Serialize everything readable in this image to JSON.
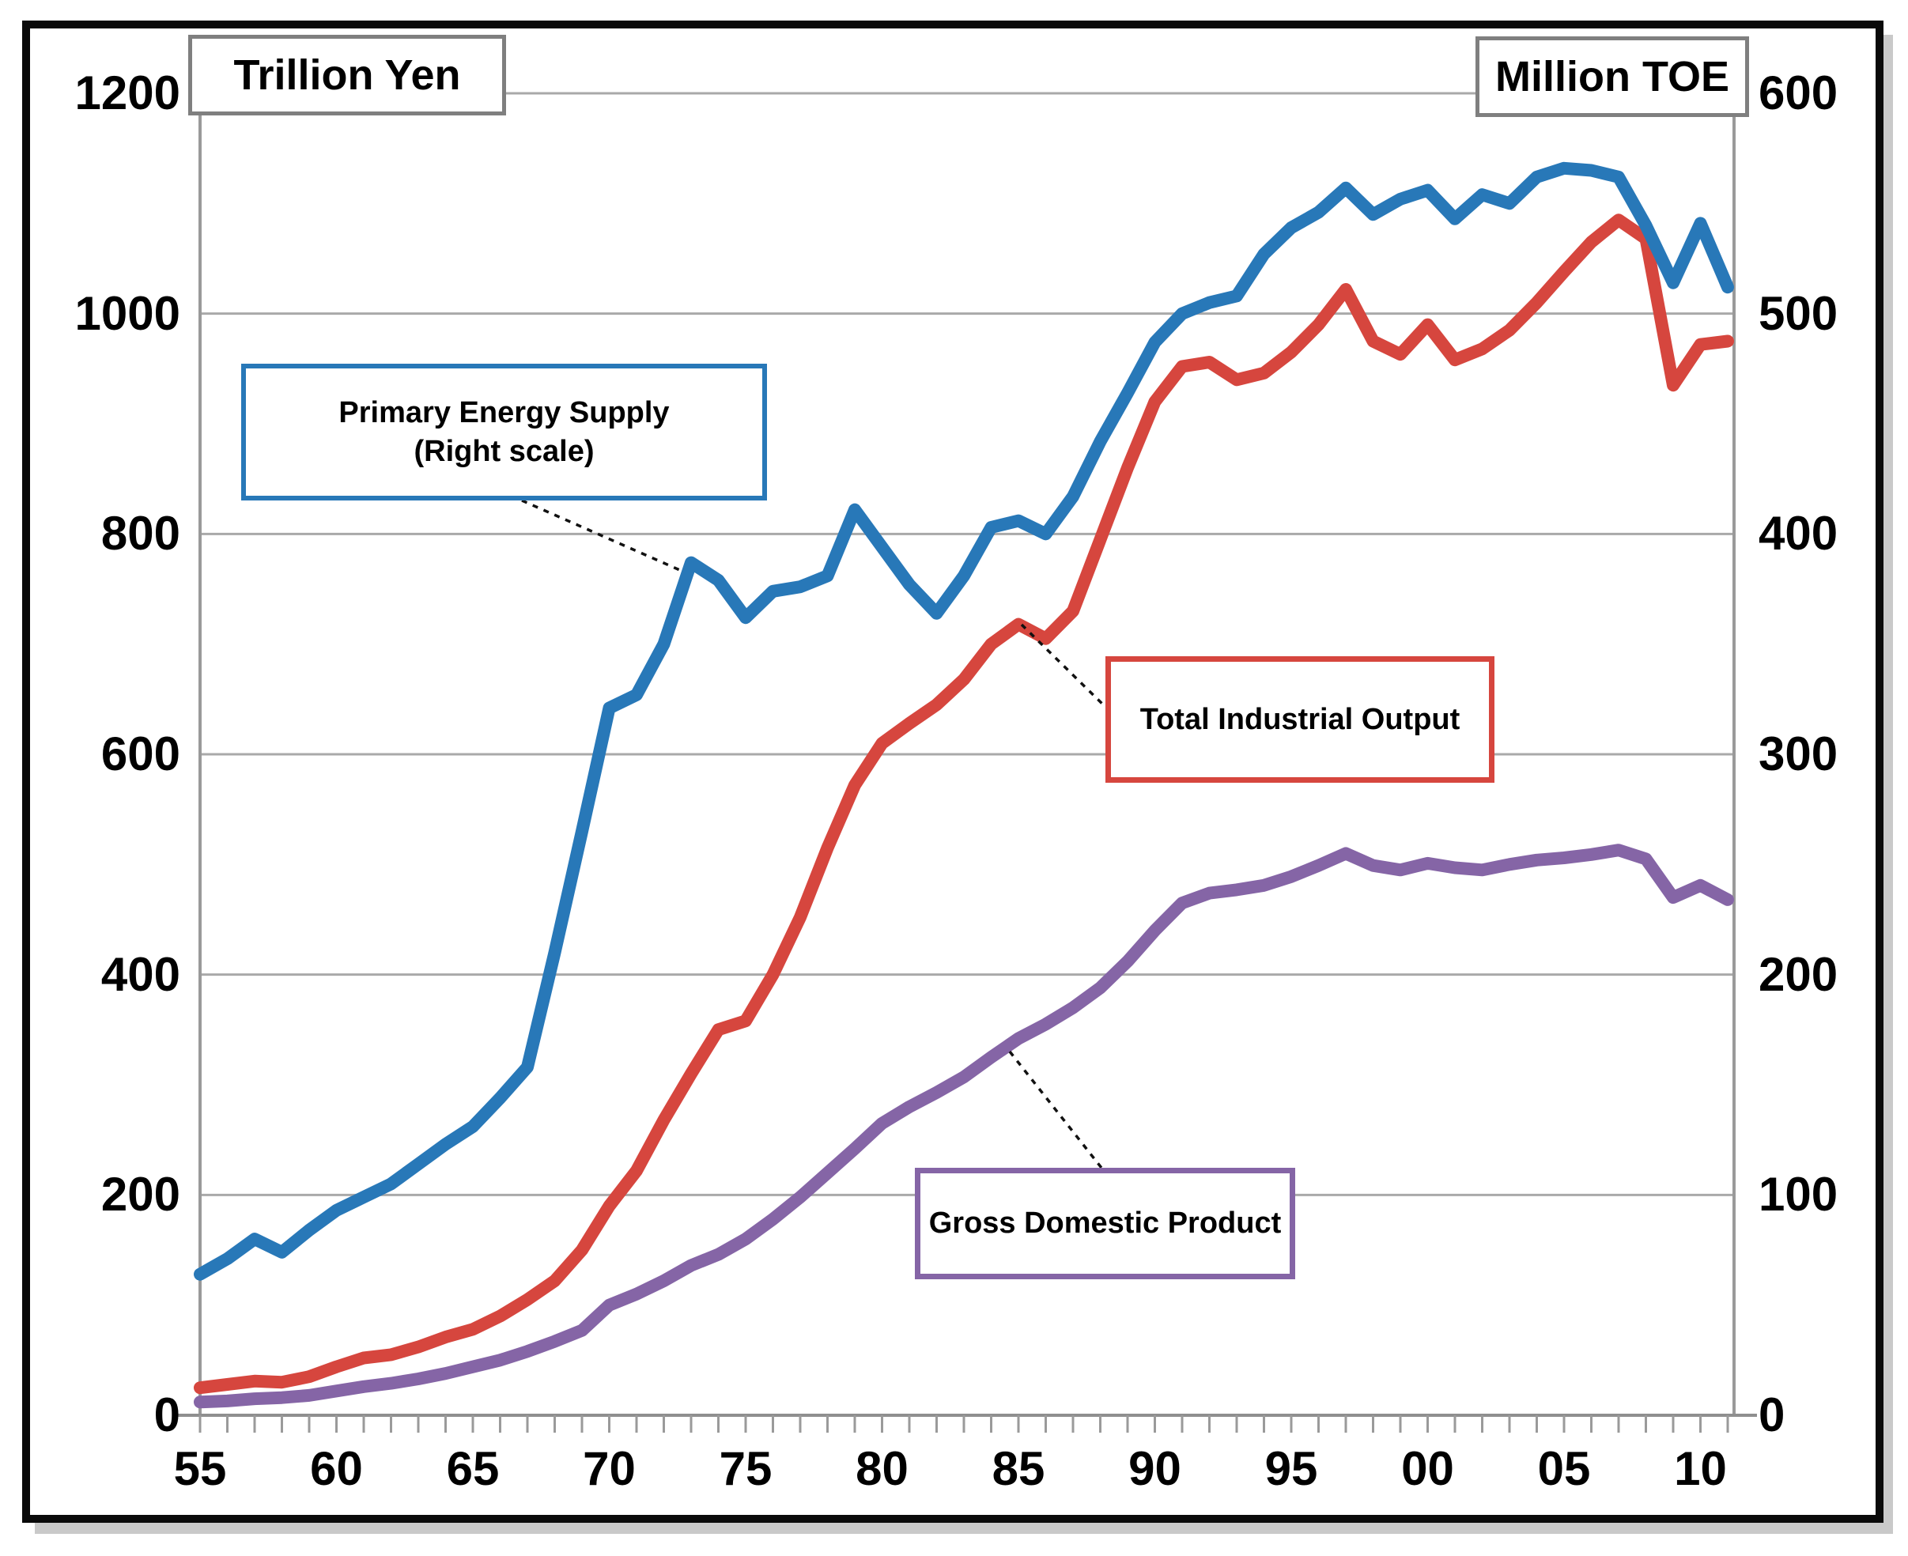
{
  "axis_boxes": {
    "left_unit": "Trillion Yen",
    "right_unit": "Million TOE"
  },
  "callouts": {
    "primary_line1": "Primary Energy Supply",
    "primary_line2": "(Right scale)",
    "industrial": "Total Industrial Output",
    "gdp": "Gross Domestic Product"
  },
  "chart_data": {
    "type": "line",
    "title": "",
    "x_start_year": 1955,
    "x_end_year": 2011,
    "grid": true,
    "left_axis": {
      "title": "Trillion Yen",
      "min": 0,
      "max": 1200,
      "step": 200,
      "tick_labels": [
        "0",
        "200",
        "400",
        "600",
        "800",
        "1000",
        "1200"
      ]
    },
    "right_axis": {
      "title": "Million TOE",
      "min": 0,
      "max": 600,
      "step": 100,
      "tick_labels": [
        "0",
        "100",
        "200",
        "300",
        "400",
        "500",
        "600"
      ]
    },
    "x_tick_labels": [
      {
        "label": "55",
        "year": 1955
      },
      {
        "label": "60",
        "year": 1960
      },
      {
        "label": "65",
        "year": 1965
      },
      {
        "label": "70",
        "year": 1970
      },
      {
        "label": "75",
        "year": 1975
      },
      {
        "label": "80",
        "year": 1980
      },
      {
        "label": "85",
        "year": 1985
      },
      {
        "label": "90",
        "year": 1990
      },
      {
        "label": "95",
        "year": 1995
      },
      {
        "label": "00",
        "year": 2000
      },
      {
        "label": "05",
        "year": 2005
      },
      {
        "label": "10",
        "year": 2010
      }
    ],
    "series": [
      {
        "id": "gross-domestic-product",
        "name": "Gross Domestic Product",
        "axis": "left",
        "unit": "Trillion Yen",
        "color": "#8565A6",
        "values": [
          12,
          13,
          15,
          16,
          18,
          22,
          26,
          29,
          33,
          38,
          44,
          50,
          58,
          67,
          77,
          100,
          110,
          122,
          136,
          146,
          160,
          178,
          198,
          220,
          242,
          265,
          280,
          293,
          307,
          325,
          342,
          355,
          370,
          388,
          412,
          440,
          465,
          474,
          477,
          481,
          489,
          499,
          510,
          499,
          495,
          501,
          497,
          495,
          500,
          504,
          506,
          509,
          513,
          505,
          470,
          481,
          468
        ]
      },
      {
        "id": "total-industrial-output",
        "name": "Total Industrial Output",
        "axis": "left",
        "unit": "Trillion Yen",
        "color": "#D6463E",
        "values": [
          25,
          28,
          31,
          30,
          35,
          44,
          52,
          55,
          62,
          71,
          78,
          90,
          105,
          122,
          150,
          190,
          222,
          268,
          310,
          350,
          358,
          400,
          452,
          515,
          572,
          610,
          628,
          645,
          668,
          700,
          718,
          705,
          730,
          795,
          860,
          920,
          952,
          956,
          940,
          946,
          965,
          990,
          1022,
          975,
          963,
          990,
          958,
          968,
          985,
          1010,
          1038,
          1065,
          1085,
          1068,
          935,
          972,
          975
        ]
      },
      {
        "id": "primary-energy-supply",
        "name": "Primary Energy Supply (Right scale)",
        "axis": "right",
        "unit": "Million TOE",
        "color": "#2878B8",
        "values": [
          64,
          71,
          80,
          74,
          84,
          93,
          99,
          105,
          114,
          123,
          131,
          144,
          158,
          210,
          265,
          321,
          327,
          350,
          387,
          379,
          362,
          374,
          376,
          381,
          411,
          394,
          377,
          364,
          381,
          403,
          406,
          400,
          417,
          442,
          464,
          487,
          500,
          505,
          508,
          527,
          539,
          546,
          557,
          545,
          552,
          556,
          543,
          554,
          550,
          562,
          566,
          565,
          562,
          540,
          514,
          541,
          512
        ]
      }
    ]
  }
}
